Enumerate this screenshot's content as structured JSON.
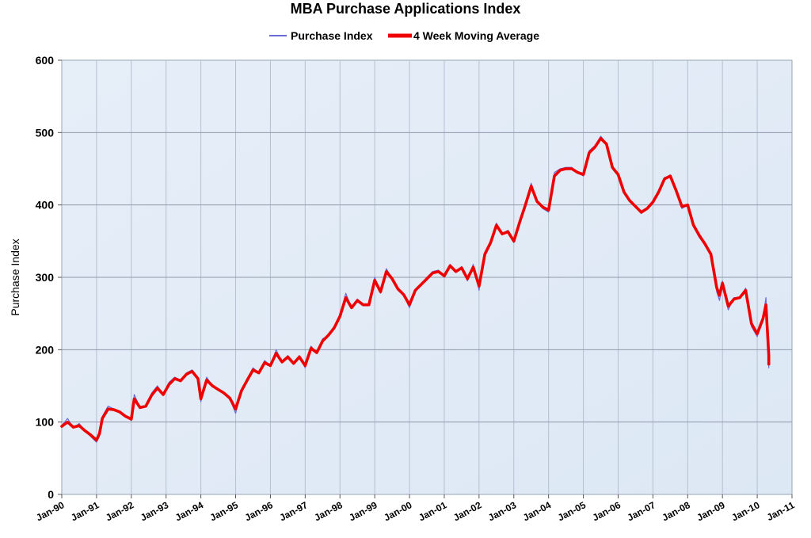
{
  "chart_data": {
    "type": "line",
    "title": "MBA Purchase Applications Index",
    "ylabel": "Purchase Index",
    "xlabel": "",
    "ylim": [
      0,
      600
    ],
    "yticks": [
      0,
      100,
      200,
      300,
      400,
      500,
      600
    ],
    "xlim": [
      "1990-01",
      "2011-01"
    ],
    "xticks": [
      "Jan-90",
      "Jan-91",
      "Jan-92",
      "Jan-93",
      "Jan-94",
      "Jan-95",
      "Jan-96",
      "Jan-97",
      "Jan-98",
      "Jan-99",
      "Jan-00",
      "Jan-01",
      "Jan-02",
      "Jan-03",
      "Jan-04",
      "Jan-05",
      "Jan-06",
      "Jan-07",
      "Jan-08",
      "Jan-09",
      "Jan-10",
      "Jan-11"
    ],
    "grid": true,
    "legend_position": "top-center",
    "series": [
      {
        "name": "Purchase Index",
        "color": "#6b6bd6",
        "points": [
          [
            "1990-01",
            95
          ],
          [
            "1990-03",
            105
          ],
          [
            "1990-05",
            92
          ],
          [
            "1990-07",
            98
          ],
          [
            "1990-09",
            88
          ],
          [
            "1990-11",
            80
          ],
          [
            "1991-01",
            72
          ],
          [
            "1991-02",
            85
          ],
          [
            "1991-03",
            108
          ],
          [
            "1991-05",
            122
          ],
          [
            "1991-07",
            118
          ],
          [
            "1991-09",
            115
          ],
          [
            "1991-11",
            108
          ],
          [
            "1992-01",
            102
          ],
          [
            "1992-02",
            138
          ],
          [
            "1992-04",
            120
          ],
          [
            "1992-06",
            122
          ],
          [
            "1992-08",
            140
          ],
          [
            "1992-10",
            150
          ],
          [
            "1992-12",
            138
          ],
          [
            "1993-02",
            155
          ],
          [
            "1993-04",
            162
          ],
          [
            "1993-06",
            158
          ],
          [
            "1993-08",
            168
          ],
          [
            "1993-10",
            172
          ],
          [
            "1993-12",
            160
          ],
          [
            "1994-01",
            128
          ],
          [
            "1994-03",
            162
          ],
          [
            "1994-05",
            150
          ],
          [
            "1994-07",
            145
          ],
          [
            "1994-09",
            140
          ],
          [
            "1994-11",
            132
          ],
          [
            "1995-01",
            112
          ],
          [
            "1995-03",
            145
          ],
          [
            "1995-05",
            160
          ],
          [
            "1995-07",
            175
          ],
          [
            "1995-09",
            168
          ],
          [
            "1995-11",
            185
          ],
          [
            "1996-01",
            178
          ],
          [
            "1996-03",
            200
          ],
          [
            "1996-05",
            182
          ],
          [
            "1996-07",
            192
          ],
          [
            "1996-09",
            180
          ],
          [
            "1996-11",
            192
          ],
          [
            "1997-01",
            175
          ],
          [
            "1997-03",
            205
          ],
          [
            "1997-05",
            195
          ],
          [
            "1997-07",
            215
          ],
          [
            "1997-09",
            220
          ],
          [
            "1997-11",
            232
          ],
          [
            "1998-01",
            248
          ],
          [
            "1998-03",
            278
          ],
          [
            "1998-05",
            258
          ],
          [
            "1998-07",
            270
          ],
          [
            "1998-09",
            262
          ],
          [
            "1998-11",
            262
          ],
          [
            "1999-01",
            300
          ],
          [
            "1999-03",
            278
          ],
          [
            "1999-05",
            312
          ],
          [
            "1999-07",
            298
          ],
          [
            "1999-09",
            282
          ],
          [
            "1999-11",
            275
          ],
          [
            "2000-01",
            258
          ],
          [
            "2000-03",
            282
          ],
          [
            "2000-05",
            290
          ],
          [
            "2000-07",
            300
          ],
          [
            "2000-09",
            308
          ],
          [
            "2000-11",
            310
          ],
          [
            "2001-01",
            300
          ],
          [
            "2001-03",
            318
          ],
          [
            "2001-05",
            308
          ],
          [
            "2001-07",
            315
          ],
          [
            "2001-09",
            295
          ],
          [
            "2001-11",
            318
          ],
          [
            "2002-01",
            282
          ],
          [
            "2002-03",
            335
          ],
          [
            "2002-05",
            350
          ],
          [
            "2002-07",
            375
          ],
          [
            "2002-09",
            360
          ],
          [
            "2002-11",
            365
          ],
          [
            "2003-01",
            348
          ],
          [
            "2003-03",
            378
          ],
          [
            "2003-05",
            402
          ],
          [
            "2003-07",
            430
          ],
          [
            "2003-09",
            405
          ],
          [
            "2003-11",
            395
          ],
          [
            "2004-01",
            390
          ],
          [
            "2004-03",
            445
          ],
          [
            "2004-05",
            450
          ],
          [
            "2004-07",
            452
          ],
          [
            "2004-09",
            452
          ],
          [
            "2004-11",
            445
          ],
          [
            "2005-01",
            440
          ],
          [
            "2005-03",
            475
          ],
          [
            "2005-05",
            482
          ],
          [
            "2005-07",
            495
          ],
          [
            "2005-09",
            485
          ],
          [
            "2005-11",
            450
          ],
          [
            "2006-01",
            440
          ],
          [
            "2006-03",
            418
          ],
          [
            "2006-05",
            405
          ],
          [
            "2006-07",
            398
          ],
          [
            "2006-09",
            388
          ],
          [
            "2006-11",
            395
          ],
          [
            "2007-01",
            405
          ],
          [
            "2007-03",
            418
          ],
          [
            "2007-05",
            438
          ],
          [
            "2007-07",
            440
          ],
          [
            "2007-09",
            418
          ],
          [
            "2007-11",
            395
          ],
          [
            "2008-01",
            400
          ],
          [
            "2008-03",
            370
          ],
          [
            "2008-05",
            355
          ],
          [
            "2008-07",
            345
          ],
          [
            "2008-09",
            330
          ],
          [
            "2008-11",
            280
          ],
          [
            "2008-12",
            268
          ],
          [
            "2009-01",
            295
          ],
          [
            "2009-03",
            255
          ],
          [
            "2009-05",
            272
          ],
          [
            "2009-07",
            272
          ],
          [
            "2009-09",
            285
          ],
          [
            "2009-11",
            232
          ],
          [
            "2010-01",
            218
          ],
          [
            "2010-03",
            245
          ],
          [
            "2010-04",
            272
          ],
          [
            "2010-05",
            185
          ],
          [
            "2010-05",
            175
          ]
        ]
      },
      {
        "name": "4 Week Moving Average",
        "color": "#ee0000",
        "points": [
          [
            "1990-01",
            94
          ],
          [
            "1990-03",
            100
          ],
          [
            "1990-05",
            93
          ],
          [
            "1990-07",
            95
          ],
          [
            "1990-09",
            88
          ],
          [
            "1990-11",
            82
          ],
          [
            "1991-01",
            75
          ],
          [
            "1991-02",
            84
          ],
          [
            "1991-03",
            105
          ],
          [
            "1991-05",
            118
          ],
          [
            "1991-07",
            117
          ],
          [
            "1991-09",
            114
          ],
          [
            "1991-11",
            108
          ],
          [
            "1992-01",
            104
          ],
          [
            "1992-02",
            132
          ],
          [
            "1992-04",
            120
          ],
          [
            "1992-06",
            122
          ],
          [
            "1992-08",
            137
          ],
          [
            "1992-10",
            147
          ],
          [
            "1992-12",
            138
          ],
          [
            "1993-02",
            152
          ],
          [
            "1993-04",
            160
          ],
          [
            "1993-06",
            157
          ],
          [
            "1993-08",
            166
          ],
          [
            "1993-10",
            170
          ],
          [
            "1993-12",
            160
          ],
          [
            "1994-01",
            132
          ],
          [
            "1994-03",
            158
          ],
          [
            "1994-05",
            150
          ],
          [
            "1994-07",
            145
          ],
          [
            "1994-09",
            140
          ],
          [
            "1994-11",
            133
          ],
          [
            "1995-01",
            118
          ],
          [
            "1995-03",
            143
          ],
          [
            "1995-05",
            158
          ],
          [
            "1995-07",
            172
          ],
          [
            "1995-09",
            168
          ],
          [
            "1995-11",
            182
          ],
          [
            "1996-01",
            178
          ],
          [
            "1996-03",
            195
          ],
          [
            "1996-05",
            183
          ],
          [
            "1996-07",
            190
          ],
          [
            "1996-09",
            181
          ],
          [
            "1996-11",
            190
          ],
          [
            "1997-01",
            178
          ],
          [
            "1997-03",
            202
          ],
          [
            "1997-05",
            196
          ],
          [
            "1997-07",
            212
          ],
          [
            "1997-09",
            220
          ],
          [
            "1997-11",
            230
          ],
          [
            "1998-01",
            246
          ],
          [
            "1998-03",
            272
          ],
          [
            "1998-05",
            258
          ],
          [
            "1998-07",
            268
          ],
          [
            "1998-09",
            262
          ],
          [
            "1998-11",
            262
          ],
          [
            "1999-01",
            296
          ],
          [
            "1999-03",
            280
          ],
          [
            "1999-05",
            308
          ],
          [
            "1999-07",
            298
          ],
          [
            "1999-09",
            284
          ],
          [
            "1999-11",
            276
          ],
          [
            "2000-01",
            262
          ],
          [
            "2000-03",
            282
          ],
          [
            "2000-05",
            290
          ],
          [
            "2000-07",
            298
          ],
          [
            "2000-09",
            306
          ],
          [
            "2000-11",
            308
          ],
          [
            "2001-01",
            302
          ],
          [
            "2001-03",
            316
          ],
          [
            "2001-05",
            308
          ],
          [
            "2001-07",
            313
          ],
          [
            "2001-09",
            298
          ],
          [
            "2001-11",
            314
          ],
          [
            "2002-01",
            288
          ],
          [
            "2002-03",
            332
          ],
          [
            "2002-05",
            348
          ],
          [
            "2002-07",
            372
          ],
          [
            "2002-09",
            360
          ],
          [
            "2002-11",
            363
          ],
          [
            "2003-01",
            350
          ],
          [
            "2003-03",
            376
          ],
          [
            "2003-05",
            400
          ],
          [
            "2003-07",
            426
          ],
          [
            "2003-09",
            405
          ],
          [
            "2003-11",
            397
          ],
          [
            "2004-01",
            393
          ],
          [
            "2004-03",
            440
          ],
          [
            "2004-05",
            448
          ],
          [
            "2004-07",
            450
          ],
          [
            "2004-09",
            450
          ],
          [
            "2004-11",
            445
          ],
          [
            "2005-01",
            442
          ],
          [
            "2005-03",
            472
          ],
          [
            "2005-05",
            480
          ],
          [
            "2005-07",
            492
          ],
          [
            "2005-09",
            484
          ],
          [
            "2005-11",
            452
          ],
          [
            "2006-01",
            442
          ],
          [
            "2006-03",
            418
          ],
          [
            "2006-05",
            406
          ],
          [
            "2006-07",
            398
          ],
          [
            "2006-09",
            390
          ],
          [
            "2006-11",
            395
          ],
          [
            "2007-01",
            404
          ],
          [
            "2007-03",
            418
          ],
          [
            "2007-05",
            436
          ],
          [
            "2007-07",
            440
          ],
          [
            "2007-09",
            420
          ],
          [
            "2007-11",
            398
          ],
          [
            "2008-01",
            400
          ],
          [
            "2008-03",
            372
          ],
          [
            "2008-05",
            358
          ],
          [
            "2008-07",
            346
          ],
          [
            "2008-09",
            332
          ],
          [
            "2008-11",
            286
          ],
          [
            "2008-12",
            275
          ],
          [
            "2009-01",
            292
          ],
          [
            "2009-03",
            260
          ],
          [
            "2009-05",
            270
          ],
          [
            "2009-07",
            272
          ],
          [
            "2009-09",
            282
          ],
          [
            "2009-11",
            236
          ],
          [
            "2010-01",
            222
          ],
          [
            "2010-03",
            243
          ],
          [
            "2010-04",
            262
          ],
          [
            "2010-05",
            192
          ],
          [
            "2010-05",
            180
          ]
        ]
      }
    ]
  }
}
